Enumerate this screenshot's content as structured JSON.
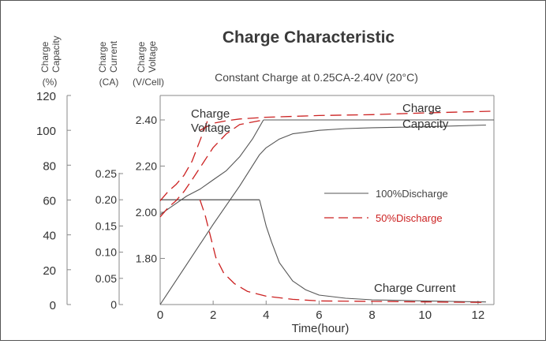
{
  "chart_data": {
    "type": "line",
    "title": "Charge Characteristic",
    "subtitle": "Constant Charge at 0.25CA-2.40V  (20°C)",
    "xlabel": "Time(hour)",
    "xlim": [
      0,
      12.6
    ],
    "x_ticks": [
      "0",
      "2",
      "4",
      "6",
      "8",
      "10",
      "12"
    ],
    "axes": {
      "capacity": {
        "label_line1": "Charge",
        "label_line2": "Capacity",
        "unit": "(%)",
        "ticks": [
          "120",
          "100",
          "80",
          "60",
          "40",
          "20",
          "0"
        ],
        "ylim": [
          0,
          120
        ]
      },
      "current": {
        "label_line1": "Charge",
        "label_line2": "Current",
        "unit": "(CA)",
        "ticks": [
          "0.25",
          "0.20",
          "0.15",
          "0.10",
          "0.05",
          "0"
        ],
        "ylim": [
          0,
          0.25
        ]
      },
      "voltage": {
        "label_line1": "Charge",
        "label_line2": "Voltage",
        "unit": "(V/Cell)",
        "ticks": [
          "2.40",
          "2.20",
          "2.00",
          "1.80"
        ],
        "ylim": [
          1.6,
          2.45
        ]
      }
    },
    "annotations": {
      "voltage_l1": "Charge",
      "voltage_l2": "Voltage",
      "capacity_l1": "Charge",
      "capacity_l2": "Capacity",
      "current": "Charge Current"
    },
    "legend_placement": "center-right",
    "colors": {
      "solid": "#555555",
      "dashed": "#cc2222"
    },
    "series": [
      {
        "name": "100%Discharge",
        "style": "solid",
        "color": "#555555",
        "curves": [
          {
            "kind": "voltage",
            "axis": "voltage",
            "x": [
              0,
              0.5,
              1,
              1.5,
              2,
              2.5,
              3,
              3.5,
              3.9
            ],
            "y": [
              1.99,
              2.03,
              2.07,
              2.1,
              2.14,
              2.18,
              2.24,
              2.32,
              2.4
            ]
          },
          {
            "kind": "voltage",
            "axis": "voltage",
            "x": [
              3.9,
              12.6
            ],
            "y": [
              2.4,
              2.4
            ]
          },
          {
            "kind": "current",
            "axis": "current",
            "x": [
              0,
              3.75
            ],
            "y": [
              0.2,
              0.2
            ]
          },
          {
            "kind": "current",
            "axis": "current",
            "x": [
              3.75,
              3.85,
              4,
              4.2,
              4.5,
              5,
              5.5,
              6,
              7,
              8,
              9,
              10,
              11,
              12.3
            ],
            "y": [
              0.2,
              0.18,
              0.15,
              0.12,
              0.08,
              0.045,
              0.028,
              0.018,
              0.012,
              0.009,
              0.008,
              0.007,
              0.006,
              0.005
            ]
          },
          {
            "kind": "capacity",
            "axis": "capacity",
            "x": [
              0,
              1,
              2,
              3,
              3.75,
              4,
              4.5,
              5,
              6,
              7,
              8,
              10,
              12.3
            ],
            "y": [
              0,
              23,
              46,
              68,
              86,
              90,
              95,
              98,
              100,
              101,
              101.5,
              102,
              103
            ]
          }
        ]
      },
      {
        "name": "50%Discharge",
        "style": "dashed",
        "color": "#cc2222",
        "curves": [
          {
            "kind": "voltage",
            "axis": "voltage",
            "x": [
              0,
              0.3,
              0.6,
              0.9,
              1.2,
              1.5,
              1.8
            ],
            "y": [
              2.05,
              2.09,
              2.12,
              2.16,
              2.22,
              2.31,
              2.4
            ]
          },
          {
            "kind": "voltage",
            "axis": "voltage",
            "x": [
              0,
              0.3,
              0.6,
              0.9,
              1.2,
              1.6,
              2,
              2.5,
              3,
              3.9
            ],
            "y": [
              1.98,
              2.02,
              2.05,
              2.09,
              2.14,
              2.21,
              2.28,
              2.34,
              2.38,
              2.4
            ]
          },
          {
            "kind": "current",
            "axis": "current",
            "x": [
              1.5,
              1.7,
              1.9,
              2.1,
              2.4,
              2.8,
              3.3,
              4,
              5,
              6,
              8,
              10,
              12.3
            ],
            "y": [
              0.2,
              0.17,
              0.13,
              0.09,
              0.06,
              0.04,
              0.025,
              0.016,
              0.01,
              0.007,
              0.006,
              0.005,
              0.004
            ]
          },
          {
            "kind": "capacity",
            "axis": "capacity",
            "x": [
              1.5,
              2,
              2.5,
              3,
              4,
              5,
              6,
              8,
              10,
              12.6
            ],
            "y": [
              100,
              104,
              105.5,
              106.5,
              107.5,
              108,
              108.5,
              109,
              110,
              111
            ]
          }
        ]
      }
    ],
    "reference_lines": [
      {
        "axis": "current",
        "x": [
          0,
          3.75
        ],
        "y": [
          0.2,
          0.2
        ]
      }
    ]
  }
}
